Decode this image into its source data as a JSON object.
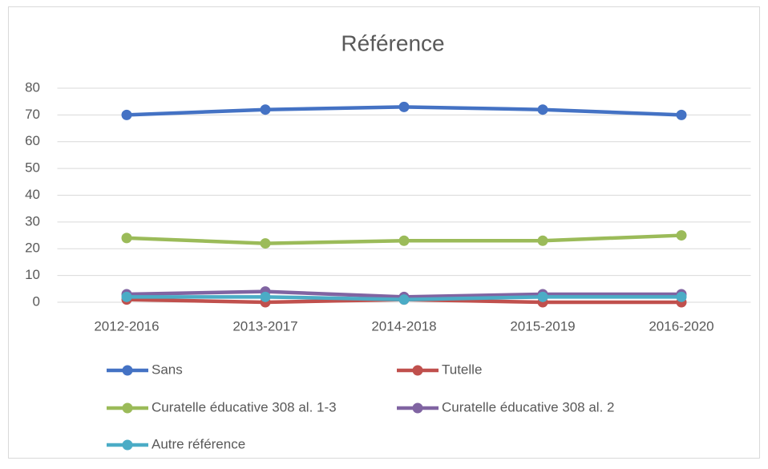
{
  "chart_data": {
    "type": "line",
    "title": "Référence",
    "categories": [
      "2012-2016",
      "2013-2017",
      "2014-2018",
      "2015-2019",
      "2016-2020"
    ],
    "series": [
      {
        "name": "Sans",
        "color": "#4472c4",
        "values": [
          70,
          72,
          73,
          72,
          70
        ]
      },
      {
        "name": "Tutelle",
        "color": "#c0504d",
        "values": [
          1,
          0,
          1,
          0,
          0
        ]
      },
      {
        "name": "Curatelle éducative 308 al. 1-3",
        "color": "#9bbb59",
        "values": [
          24,
          22,
          23,
          23,
          25
        ]
      },
      {
        "name": "Curatelle éducative 308 al. 2",
        "color": "#8064a2",
        "values": [
          3,
          4,
          2,
          3,
          3
        ]
      },
      {
        "name": "Autre référence",
        "color": "#4bacc6",
        "values": [
          2,
          2,
          1,
          2,
          2
        ]
      }
    ],
    "ylim": [
      0,
      80
    ],
    "yticks": [
      0,
      10,
      20,
      30,
      40,
      50,
      60,
      70,
      80
    ],
    "grid": true,
    "legend": "bottom"
  }
}
